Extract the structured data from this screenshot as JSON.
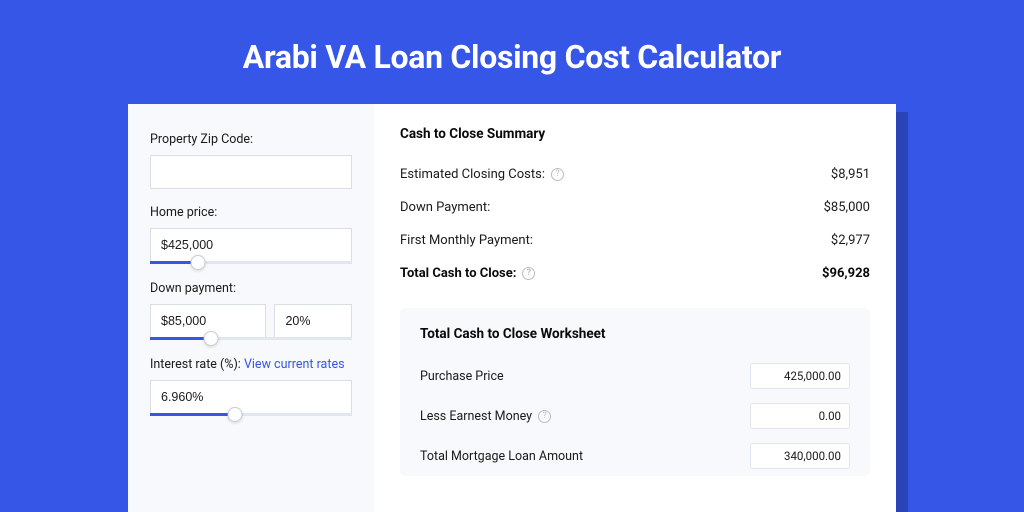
{
  "page_title": "Arabi VA Loan Closing Cost Calculator",
  "colors": {
    "bg": "#3556e6",
    "shadow": "#2a43b8",
    "card": "#ffffff",
    "sidebar_bg": "#f7f9fc",
    "worksheet_bg": "#f7f9fc",
    "text": "#1a1a1a",
    "link": "#3556e6",
    "border": "#d8dde6",
    "slider_track": "#e2e6ee",
    "slider_fill": "#3556e6",
    "help": "#b8bec9"
  },
  "sidebar": {
    "zip": {
      "label": "Property Zip Code:",
      "value": ""
    },
    "home_price": {
      "label": "Home price:",
      "value": "$425,000",
      "slider_fill_pct": 24,
      "thumb_pct": 24
    },
    "down_payment": {
      "label": "Down payment:",
      "value": "$85,000",
      "pct": "20%",
      "slider_fill_pct": 30,
      "thumb_pct": 30
    },
    "interest": {
      "label_prefix": "Interest rate (%): ",
      "link_text": "View current rates",
      "value": "6.960%",
      "slider_fill_pct": 42,
      "thumb_pct": 42
    }
  },
  "summary": {
    "title": "Cash to Close Summary",
    "rows": [
      {
        "label": "Estimated Closing Costs:",
        "help": true,
        "value": "$8,951",
        "bold": false
      },
      {
        "label": "Down Payment:",
        "help": false,
        "value": "$85,000",
        "bold": false
      },
      {
        "label": "First Monthly Payment:",
        "help": false,
        "value": "$2,977",
        "bold": false
      },
      {
        "label": "Total Cash to Close:",
        "help": true,
        "value": "$96,928",
        "bold": true
      }
    ]
  },
  "worksheet": {
    "title": "Total Cash to Close Worksheet",
    "rows": [
      {
        "label": "Purchase Price",
        "help": false,
        "value": "425,000.00"
      },
      {
        "label": "Less Earnest Money",
        "help": true,
        "value": "0.00"
      },
      {
        "label": "Total Mortgage Loan Amount",
        "help": false,
        "value": "340,000.00"
      }
    ]
  }
}
